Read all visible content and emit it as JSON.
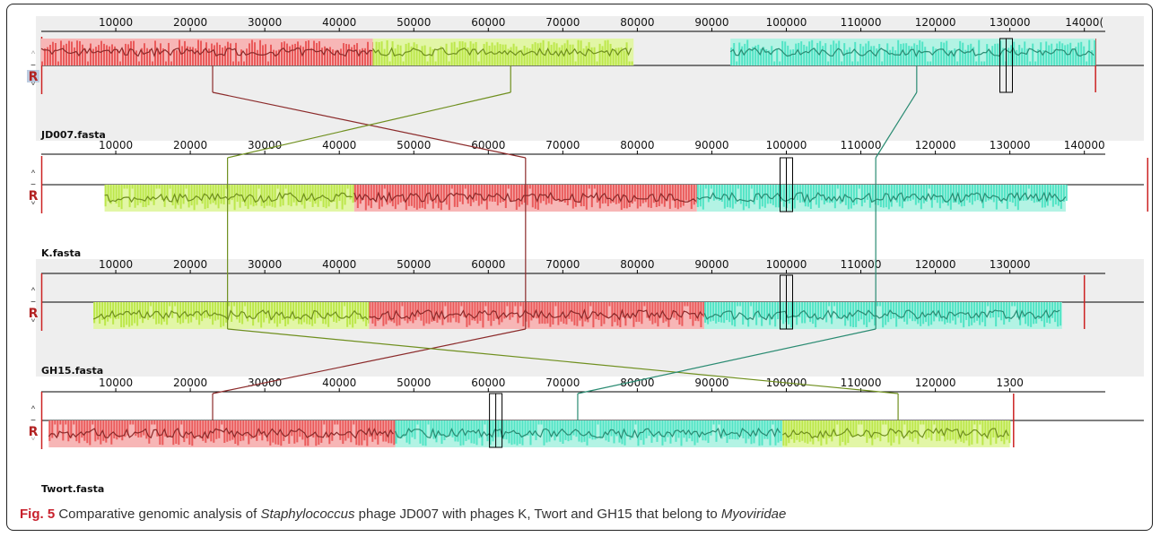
{
  "caption": {
    "label": "Fig. 5",
    "text_a": "Comparative genomic analysis of ",
    "genus": "Staphylococcus",
    "text_b": " phage JD007 with phages K, Twort and GH15 that belong to ",
    "family": "Myoviridae"
  },
  "controls": {
    "up_symbol": "˄",
    "dash_symbol": "–",
    "r_label": "R",
    "down_symbol": "˅"
  },
  "colors": {
    "red_block": "#e84a4a",
    "red_bg": "#f7b6b6",
    "red_line": "#8b2a2a",
    "green_block": "#b5e43a",
    "green_bg": "#e2f6a6",
    "green_line": "#6f8f1e",
    "teal_block": "#3fe0c0",
    "teal_bg": "#b3f3e4",
    "teal_line": "#2a8b72",
    "panel_bg": "#eeeeee",
    "end_marker": "#cc2222"
  },
  "genomes": [
    {
      "name": "JD007.fasta",
      "ticks": [
        "10000",
        "20000",
        "30000",
        "40000",
        "50000",
        "60000",
        "70000",
        "80000",
        "90000",
        "100000",
        "110000",
        "120000",
        "130000",
        "14000("
      ],
      "blocks": [
        {
          "color": "red",
          "start": 0,
          "end": 44500,
          "dir": "up"
        },
        {
          "color": "green",
          "start": 44500,
          "end": 79500,
          "dir": "up"
        },
        {
          "color": "teal",
          "start": 92500,
          "end": 141500,
          "dir": "up"
        }
      ],
      "box": 129500,
      "end_marker": 141500
    },
    {
      "name": "K.fasta",
      "ticks": [
        "10000",
        "20000",
        "30000",
        "40000",
        "50000",
        "60000",
        "70000",
        "80000",
        "90000",
        "100000",
        "110000",
        "120000",
        "130000",
        "140000"
      ],
      "blocks": [
        {
          "color": "green",
          "start": 8500,
          "end": 42000,
          "dir": "down"
        },
        {
          "color": "red",
          "start": 42000,
          "end": 88000,
          "dir": "down"
        },
        {
          "color": "teal",
          "start": 88000,
          "end": 137500,
          "dir": "down"
        }
      ],
      "box": 100000,
      "end_marker": 148500
    },
    {
      "name": "GH15.fasta",
      "ticks": [
        "10000",
        "20000",
        "30000",
        "40000",
        "50000",
        "60000",
        "70000",
        "80000",
        "90000",
        "100000",
        "110000",
        "120000",
        "130000"
      ],
      "blocks": [
        {
          "color": "green",
          "start": 7000,
          "end": 44000,
          "dir": "down"
        },
        {
          "color": "red",
          "start": 44000,
          "end": 89000,
          "dir": "down"
        },
        {
          "color": "teal",
          "start": 89000,
          "end": 137000,
          "dir": "down"
        }
      ],
      "box": 100000,
      "end_marker": 140000
    },
    {
      "name": "Twort.fasta",
      "ticks": [
        "10000",
        "20000",
        "30000",
        "40000",
        "50000",
        "60000",
        "70000",
        "80000",
        "90000",
        "100000",
        "110000",
        "120000",
        "1300"
      ],
      "blocks": [
        {
          "color": "red",
          "start": 1000,
          "end": 47500,
          "dir": "down"
        },
        {
          "color": "teal",
          "start": 47500,
          "end": 99500,
          "dir": "down"
        },
        {
          "color": "green",
          "start": 99500,
          "end": 130000,
          "dir": "down"
        }
      ],
      "box": 61000,
      "end_marker": 130500
    }
  ],
  "connectors": [
    {
      "color": "red",
      "points": [
        23000,
        65000,
        65000,
        23000
      ]
    },
    {
      "color": "green",
      "points": [
        63000,
        25000,
        25000,
        115000
      ]
    },
    {
      "color": "teal",
      "points": [
        117500,
        112000,
        112000,
        72000
      ]
    }
  ]
}
